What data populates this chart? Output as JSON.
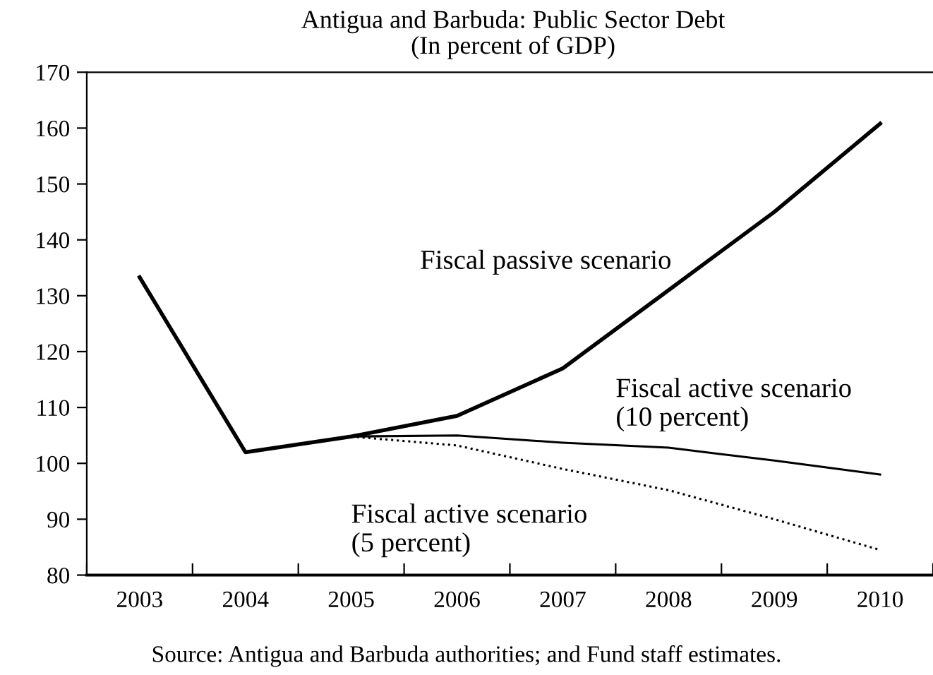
{
  "chart_data": {
    "type": "line",
    "title": "Antigua and Barbuda: Public Sector Debt",
    "subtitle": "(In percent of GDP)",
    "categories": [
      "2003",
      "2004",
      "2005",
      "2006",
      "2007",
      "2008",
      "2009",
      "2010"
    ],
    "series": [
      {
        "name": "Fiscal passive scenario",
        "color": "#000000",
        "line_style": "solid",
        "values": [
          133.3,
          102,
          104.8,
          108.5,
          117,
          131,
          145,
          160.8
        ]
      },
      {
        "name": "Fiscal active scenario\n(10 percent)",
        "color": "#000000",
        "line_style": "solid",
        "values": [
          null,
          null,
          104.8,
          105,
          103.7,
          102.8,
          100.5,
          98
        ]
      },
      {
        "name": "Fiscal active scenario\n(5 percent)",
        "color": "#000000",
        "line_style": "dotted",
        "values": [
          null,
          null,
          104.8,
          103.2,
          99,
          95.2,
          90,
          84.5
        ]
      }
    ],
    "ylim": [
      80,
      170
    ],
    "yticks": [
      80,
      90,
      100,
      110,
      120,
      130,
      140,
      150,
      160,
      170
    ],
    "grid": false,
    "legend": false,
    "marker": "none",
    "annotations": [
      "Source: Antigua and Barbuda authorities; and Fund staff estimates."
    ]
  }
}
